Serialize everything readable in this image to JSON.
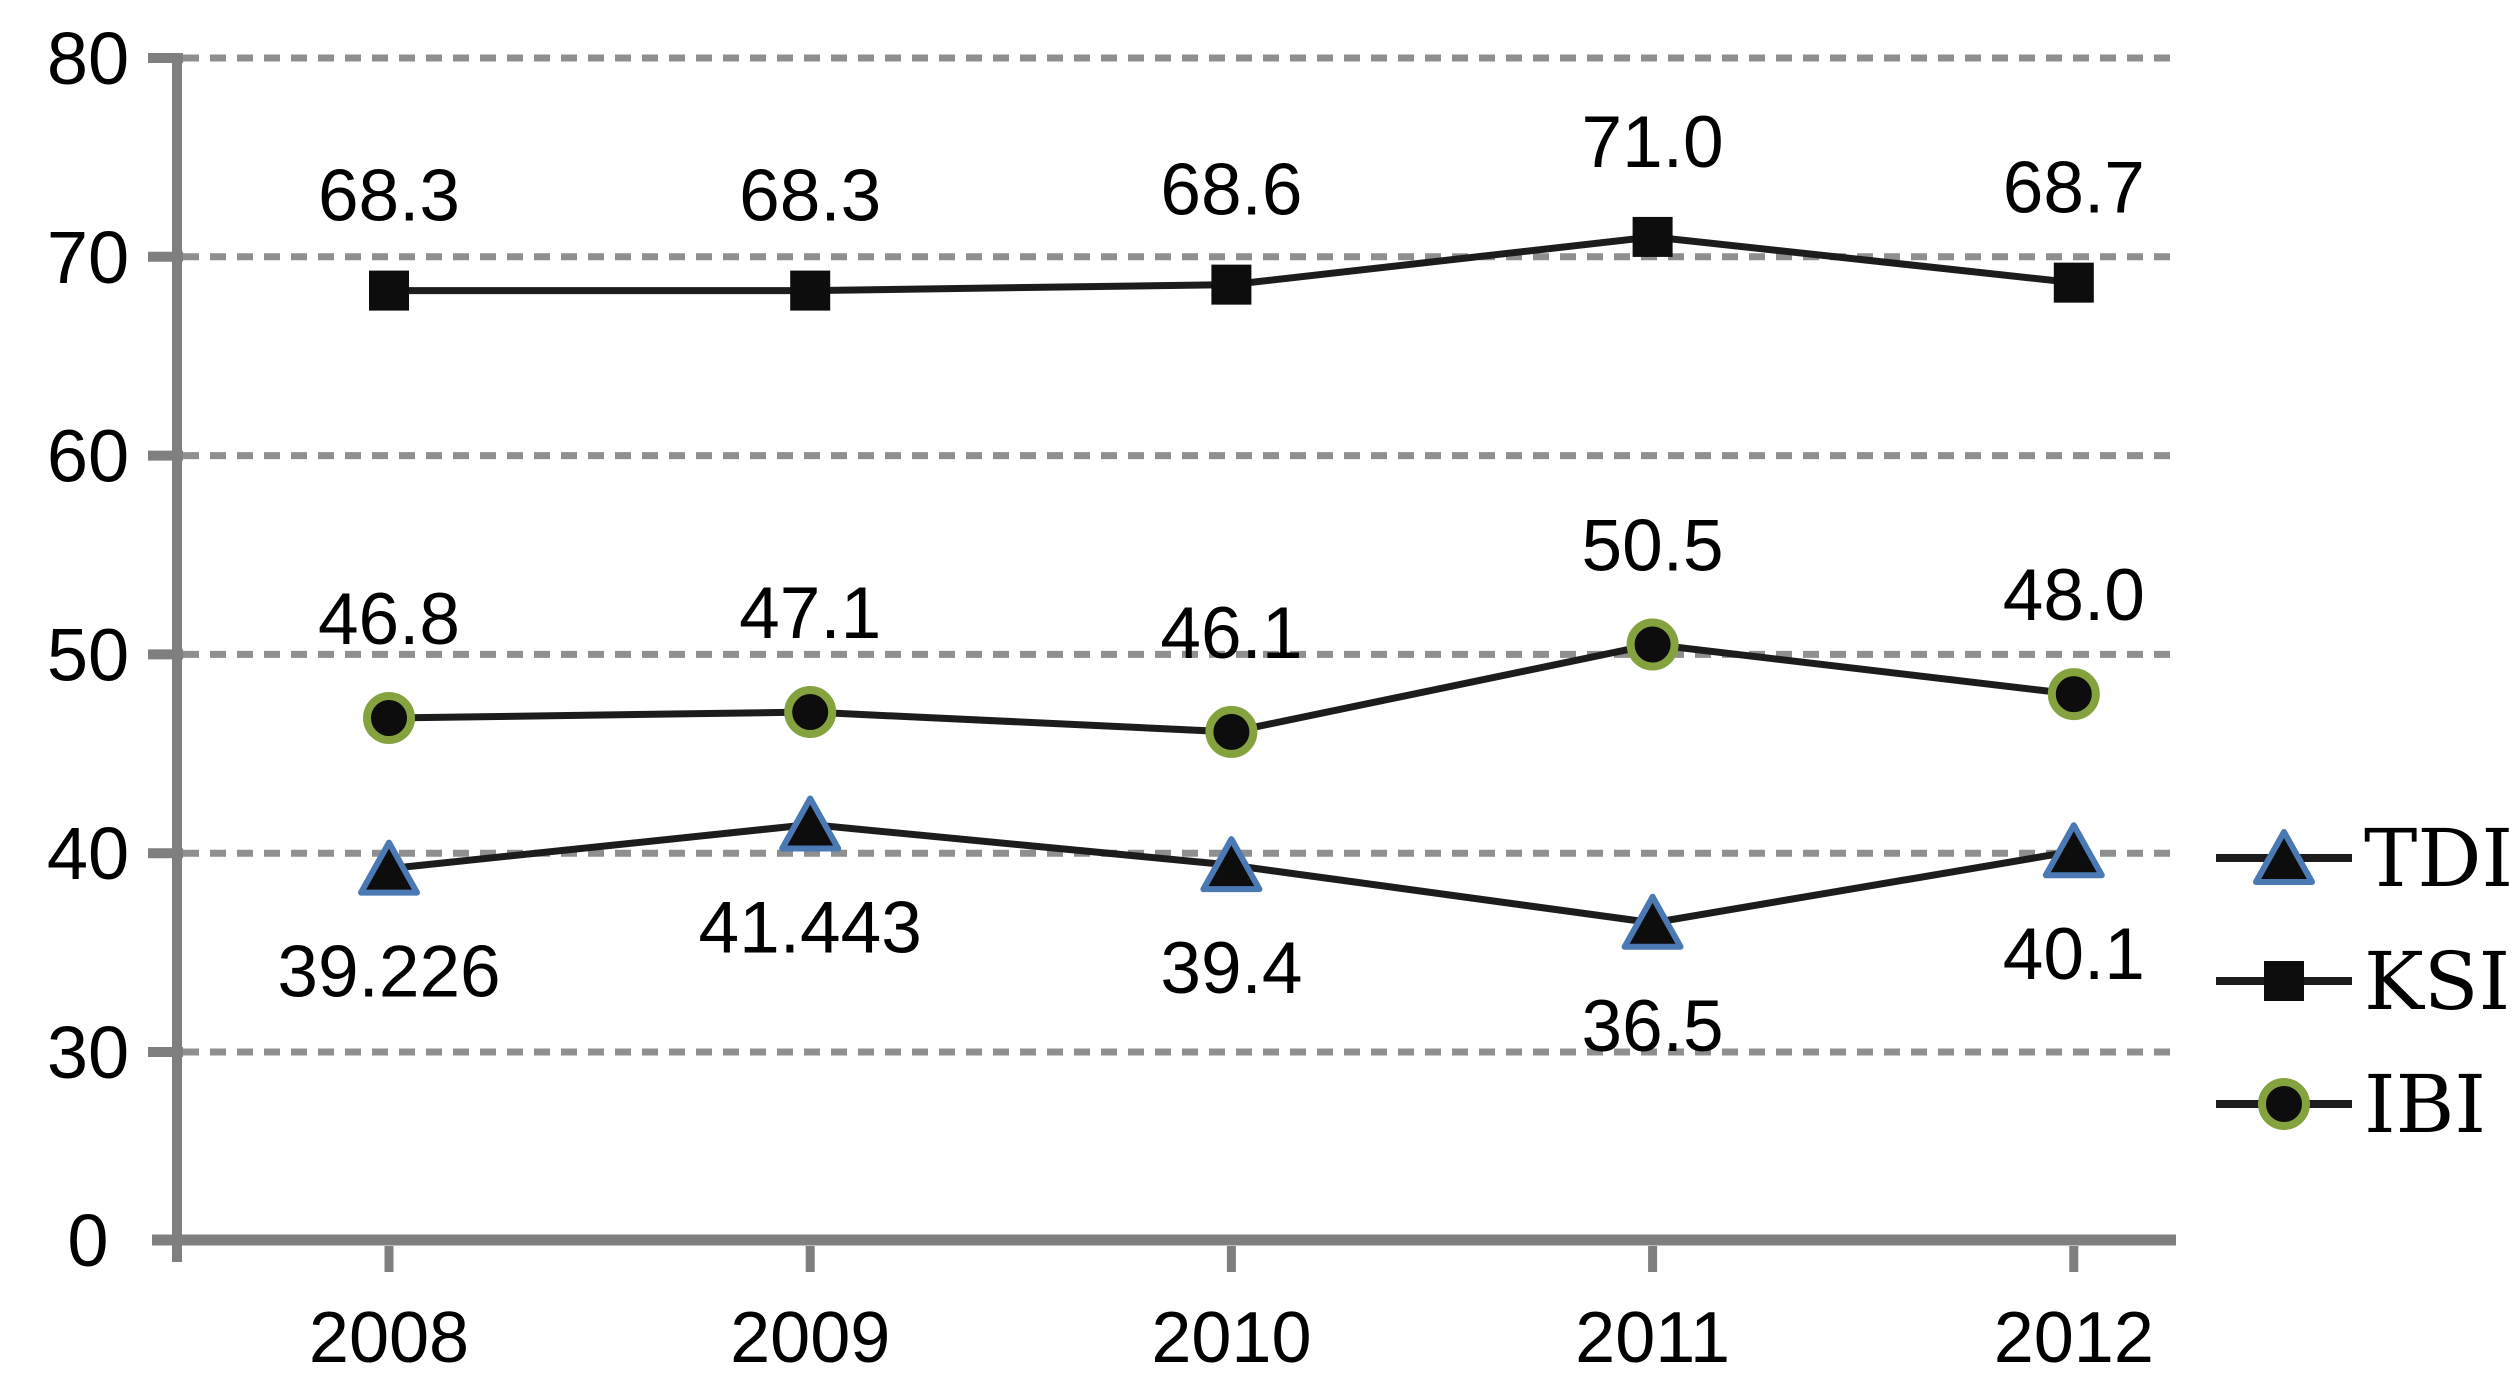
{
  "chart_data": {
    "type": "line",
    "title": "",
    "categories": [
      "2008",
      "2009",
      "2010",
      "2011",
      "2012"
    ],
    "series": [
      {
        "name": "KSI",
        "marker": "square",
        "values": [
          68.3,
          68.3,
          68.6,
          71.0,
          68.7
        ],
        "labels": [
          "68.3",
          "68.3",
          "68.6",
          "71.0",
          "68.7"
        ],
        "label_position": "above"
      },
      {
        "name": "IBI",
        "marker": "circle",
        "values": [
          46.8,
          47.1,
          46.1,
          50.5,
          48.0
        ],
        "labels": [
          "46.8",
          "47.1",
          "46.1",
          "50.5",
          "48.0"
        ],
        "label_position": "above"
      },
      {
        "name": "TDI",
        "marker": "triangle",
        "values": [
          39.226,
          41.443,
          39.4,
          36.5,
          40.1
        ],
        "labels": [
          "39.226",
          "41.443",
          "39.4",
          "36.5",
          "40.1"
        ],
        "label_position": "below"
      }
    ],
    "y_axis": {
      "tick_labels": [
        "80",
        "70",
        "60",
        "50",
        "40",
        "30",
        "0"
      ],
      "tick_values": [
        80,
        70,
        60,
        50,
        40,
        30,
        0
      ],
      "ylim": [
        30,
        80
      ],
      "note": "equally spaced labels; 0 sits one slot below 30 (compressed axis)",
      "grid": "horizontal-dashed"
    },
    "x_axis": {
      "tick_labels": [
        "2008",
        "2009",
        "2010",
        "2011",
        "2012"
      ]
    },
    "legend": {
      "position": "right",
      "entries": [
        {
          "label": "TDI",
          "marker": "triangle"
        },
        {
          "label": "KSI",
          "marker": "square"
        },
        {
          "label": "IBI",
          "marker": "circle"
        }
      ]
    },
    "colors": {
      "series_line": "#1c1c1c",
      "marker_fill": "#0d0d0d",
      "tdi_triangle_outline": "#4a79b4",
      "ibi_circle_ring": "#84a33f",
      "ksi_square": "#0d0d0d",
      "axis": "#7f7f7f",
      "gridline": "#8f8f8f",
      "text": "#000000",
      "background": "#ffffff"
    }
  }
}
